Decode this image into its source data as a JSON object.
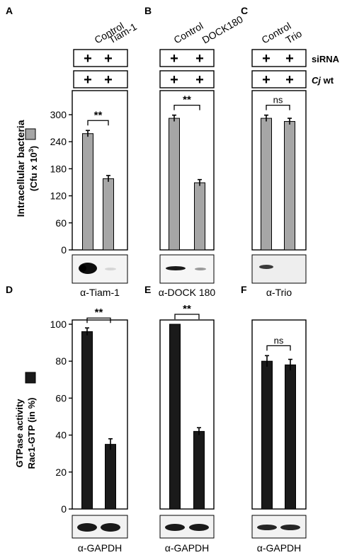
{
  "colors": {
    "upper_bar": "#a6a6a6",
    "lower_bar": "#1a1a1a",
    "frame": "#000000",
    "background": "#ffffff"
  },
  "panels": {
    "A": {
      "letter": "A",
      "col1": "Control",
      "col2": "Tiam-1",
      "blot_label": "α-Tiam-1"
    },
    "B": {
      "letter": "B",
      "col1": "Control",
      "col2": "DOCK180",
      "blot_label": "α-DOCK 180"
    },
    "C": {
      "letter": "C",
      "col1": "Control",
      "col2": "Trio",
      "blot_label": "α-Trio"
    },
    "D": {
      "letter": "D",
      "blot_label": "α-GAPDH"
    },
    "E": {
      "letter": "E",
      "blot_label": "α-GAPDH"
    },
    "F": {
      "letter": "F",
      "blot_label": "α-GAPDH"
    }
  },
  "conditions": {
    "plus": "+",
    "row1_label": "siRNA",
    "row2_label_italic": "Cj",
    "row2_label_rest": " wt"
  },
  "upper_axis": {
    "label_line1": "Intracellular bacteria",
    "label_line2_pre": "(Cfu x 10",
    "label_line2_sup": "3",
    "label_line2_post": ")"
  },
  "lower_axis": {
    "label_line1": "GTPase activity",
    "label_line2": "Rac1-GTP (in %)"
  },
  "chart_data": [
    {
      "panel": "A",
      "type": "bar",
      "categories": [
        "Control",
        "Tiam-1"
      ],
      "values": [
        258,
        158
      ],
      "errors": [
        7,
        7
      ],
      "ylim": [
        0,
        300
      ],
      "yticks": [
        "0",
        "60",
        "120",
        "180",
        "240",
        "300"
      ],
      "significance": "**"
    },
    {
      "panel": "B",
      "type": "bar",
      "categories": [
        "Control",
        "DOCK180"
      ],
      "values": [
        292,
        149
      ],
      "errors": [
        7,
        7
      ],
      "ylim": [
        0,
        300
      ],
      "significance": "**"
    },
    {
      "panel": "C",
      "type": "bar",
      "categories": [
        "Control",
        "Trio"
      ],
      "values": [
        292,
        285
      ],
      "errors": [
        7,
        7
      ],
      "ylim": [
        0,
        300
      ],
      "significance": "ns"
    },
    {
      "panel": "D",
      "type": "bar",
      "categories": [
        "Control",
        "Tiam-1"
      ],
      "values": [
        96,
        35
      ],
      "errors": [
        2,
        3
      ],
      "ylim": [
        0,
        100
      ],
      "yticks": [
        "0",
        "20",
        "40",
        "60",
        "80",
        "100"
      ],
      "significance": "**"
    },
    {
      "panel": "E",
      "type": "bar",
      "categories": [
        "Control",
        "DOCK180"
      ],
      "values": [
        100,
        42
      ],
      "errors": [
        0,
        2
      ],
      "ylim": [
        0,
        100
      ],
      "significance": "**"
    },
    {
      "panel": "F",
      "type": "bar",
      "categories": [
        "Control",
        "Trio"
      ],
      "values": [
        80,
        78
      ],
      "errors": [
        3,
        3
      ],
      "ylim": [
        0,
        100
      ],
      "significance": "ns"
    }
  ]
}
